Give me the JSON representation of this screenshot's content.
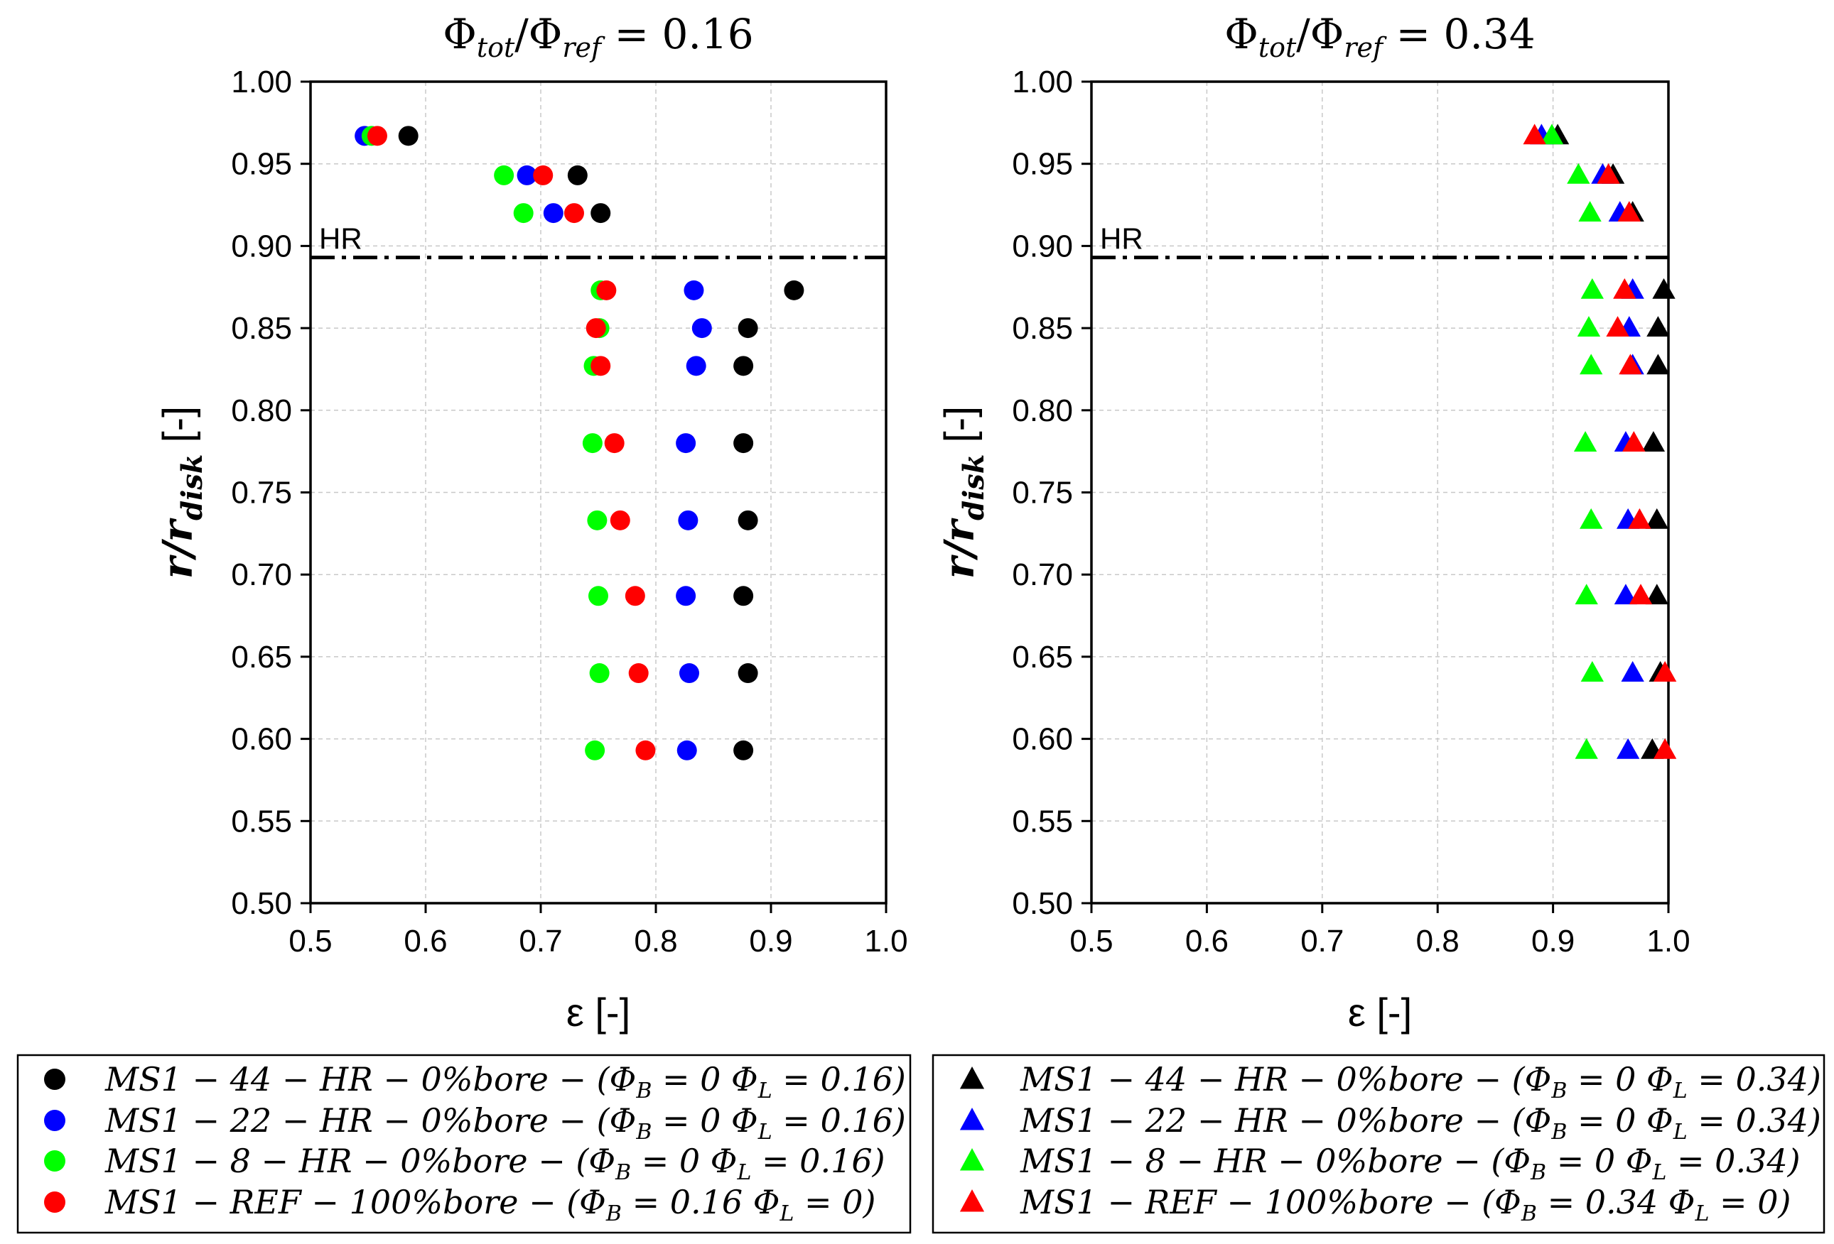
{
  "chart_data": [
    {
      "type": "scatter",
      "marker": "circle",
      "title": "Φtot/Φref = 0.16",
      "title_parts": {
        "phi": "Φ",
        "tot": "tot",
        "slash": "/",
        "ref": "ref",
        "eq": " = 0.16"
      },
      "xlabel": "ε [-]",
      "ylabel": "r/rdisk [-]",
      "ylabel_parts": {
        "r": "r/r",
        "sub": "disk",
        "unit": " [-]"
      },
      "xlim": [
        0.5,
        1.0
      ],
      "ylim": [
        0.5,
        1.0
      ],
      "xticks": [
        "0.5",
        "0.6",
        "0.7",
        "0.8",
        "0.9",
        "1.0"
      ],
      "yticks": [
        "0.50",
        "0.55",
        "0.60",
        "0.65",
        "0.70",
        "0.75",
        "0.80",
        "0.85",
        "0.90",
        "0.95",
        "1.00"
      ],
      "grid": true,
      "hr_line": {
        "label": "HR",
        "y": 0.893
      },
      "series": [
        {
          "name": "MS1 − 44 − HR − 0%bore − (ΦB = 0 ΦL = 0.16)",
          "color": "#000000",
          "points": [
            [
              0.585,
              0.967
            ],
            [
              0.732,
              0.943
            ],
            [
              0.752,
              0.92
            ],
            [
              0.92,
              0.873
            ],
            [
              0.88,
              0.85
            ],
            [
              0.876,
              0.827
            ],
            [
              0.876,
              0.78
            ],
            [
              0.88,
              0.733
            ],
            [
              0.876,
              0.687
            ],
            [
              0.88,
              0.64
            ],
            [
              0.876,
              0.593
            ]
          ]
        },
        {
          "name": "MS1 − 22 − HR − 0%bore − (ΦB = 0 ΦL = 0.16)",
          "color": "#0000ff",
          "points": [
            [
              0.547,
              0.967
            ],
            [
              0.688,
              0.943
            ],
            [
              0.711,
              0.92
            ],
            [
              0.833,
              0.873
            ],
            [
              0.84,
              0.85
            ],
            [
              0.835,
              0.827
            ],
            [
              0.826,
              0.78
            ],
            [
              0.828,
              0.733
            ],
            [
              0.826,
              0.687
            ],
            [
              0.829,
              0.64
            ],
            [
              0.827,
              0.593
            ]
          ]
        },
        {
          "name": "MS1 − 8 − HR − 0%bore − (ΦB = 0 ΦL = 0.16)",
          "color": "#00ff00",
          "points": [
            [
              0.553,
              0.967
            ],
            [
              0.668,
              0.943
            ],
            [
              0.685,
              0.92
            ],
            [
              0.752,
              0.873
            ],
            [
              0.751,
              0.85
            ],
            [
              0.746,
              0.827
            ],
            [
              0.745,
              0.78
            ],
            [
              0.749,
              0.733
            ],
            [
              0.75,
              0.687
            ],
            [
              0.751,
              0.64
            ],
            [
              0.747,
              0.593
            ]
          ]
        },
        {
          "name": "MS1 − REF − 100%bore − (ΦB = 0.16 ΦL = 0)",
          "color": "#ff0000",
          "points": [
            [
              0.558,
              0.967
            ],
            [
              0.702,
              0.943
            ],
            [
              0.729,
              0.92
            ],
            [
              0.757,
              0.873
            ],
            [
              0.748,
              0.85
            ],
            [
              0.752,
              0.827
            ],
            [
              0.764,
              0.78
            ],
            [
              0.769,
              0.733
            ],
            [
              0.782,
              0.687
            ],
            [
              0.785,
              0.64
            ],
            [
              0.791,
              0.593
            ]
          ]
        }
      ],
      "legend": {
        "placement": "bottom-left",
        "entries": [
          {
            "a": "MS1 − 44 − HR − 0%bore − (Φ",
            "b": "B",
            "c": " = 0 Φ",
            "d": "L",
            "e": " = 0.16)"
          },
          {
            "a": "MS1 − 22 − HR − 0%bore − (Φ",
            "b": "B",
            "c": " = 0 Φ",
            "d": "L",
            "e": " = 0.16)"
          },
          {
            "a": "MS1 − 8 − HR − 0%bore − (Φ",
            "b": "B",
            "c": " = 0 Φ",
            "d": "L",
            "e": " = 0.16)"
          },
          {
            "a": "MS1 − REF − 100%bore − (Φ",
            "b": "B",
            "c": " = 0.16 Φ",
            "d": "L",
            "e": " = 0)"
          }
        ]
      }
    },
    {
      "type": "scatter",
      "marker": "triangle",
      "title": "Φtot/Φref = 0.34",
      "title_parts": {
        "phi": "Φ",
        "tot": "tot",
        "slash": "/",
        "ref": "ref",
        "eq": " = 0.34"
      },
      "xlabel": "ε [-]",
      "ylabel": "r/rdisk [-]",
      "ylabel_parts": {
        "r": "r/r",
        "sub": "disk",
        "unit": " [-]"
      },
      "xlim": [
        0.5,
        1.0
      ],
      "ylim": [
        0.5,
        1.0
      ],
      "xticks": [
        "0.5",
        "0.6",
        "0.7",
        "0.8",
        "0.9",
        "1.0"
      ],
      "yticks": [
        "0.50",
        "0.55",
        "0.60",
        "0.65",
        "0.70",
        "0.75",
        "0.80",
        "0.85",
        "0.90",
        "0.95",
        "1.00"
      ],
      "grid": true,
      "hr_line": {
        "label": "HR",
        "y": 0.893
      },
      "series": [
        {
          "name": "MS1 − 44 − HR − 0%bore − (ΦB = 0 ΦL = 0.34)",
          "color": "#000000",
          "points": [
            [
              0.904,
              0.967
            ],
            [
              0.952,
              0.943
            ],
            [
              0.969,
              0.92
            ],
            [
              0.996,
              0.873
            ],
            [
              0.991,
              0.85
            ],
            [
              0.991,
              0.827
            ],
            [
              0.987,
              0.78
            ],
            [
              0.99,
              0.733
            ],
            [
              0.99,
              0.687
            ],
            [
              0.993,
              0.64
            ],
            [
              0.986,
              0.593
            ]
          ]
        },
        {
          "name": "MS1 − 22 − HR − 0%bore − (ΦB = 0 ΦL = 0.34)",
          "color": "#0000ff",
          "points": [
            [
              0.89,
              0.967
            ],
            [
              0.943,
              0.943
            ],
            [
              0.958,
              0.92
            ],
            [
              0.969,
              0.873
            ],
            [
              0.966,
              0.85
            ],
            [
              0.969,
              0.827
            ],
            [
              0.963,
              0.78
            ],
            [
              0.965,
              0.733
            ],
            [
              0.963,
              0.687
            ],
            [
              0.969,
              0.64
            ],
            [
              0.965,
              0.593
            ]
          ]
        },
        {
          "name": "MS1 − 8 − HR − 0%bore − (ΦB = 0 ΦL = 0.34)",
          "color": "#00ff00",
          "points": [
            [
              0.899,
              0.967
            ],
            [
              0.922,
              0.943
            ],
            [
              0.932,
              0.92
            ],
            [
              0.934,
              0.873
            ],
            [
              0.931,
              0.85
            ],
            [
              0.933,
              0.827
            ],
            [
              0.928,
              0.78
            ],
            [
              0.933,
              0.733
            ],
            [
              0.929,
              0.687
            ],
            [
              0.934,
              0.64
            ],
            [
              0.929,
              0.593
            ]
          ]
        },
        {
          "name": "MS1 − REF − 100%bore − (ΦB = 0.34 ΦL = 0)",
          "color": "#ff0000",
          "points": [
            [
              0.884,
              0.967
            ],
            [
              0.948,
              0.943
            ],
            [
              0.966,
              0.92
            ],
            [
              0.962,
              0.873
            ],
            [
              0.956,
              0.85
            ],
            [
              0.967,
              0.827
            ],
            [
              0.97,
              0.78
            ],
            [
              0.975,
              0.733
            ],
            [
              0.976,
              0.687
            ],
            [
              0.997,
              0.64
            ],
            [
              0.997,
              0.593
            ]
          ]
        }
      ],
      "legend": {
        "placement": "bottom-right",
        "entries": [
          {
            "a": "MS1 − 44 − HR − 0%bore − (Φ",
            "b": "B",
            "c": " = 0 Φ",
            "d": "L",
            "e": " = 0.34)"
          },
          {
            "a": "MS1 − 22 − HR − 0%bore − (Φ",
            "b": "B",
            "c": " = 0 Φ",
            "d": "L",
            "e": " = 0.34)"
          },
          {
            "a": "MS1 − 8 − HR − 0%bore − (Φ",
            "b": "B",
            "c": " = 0 Φ",
            "d": "L",
            "e": " = 0.34)"
          },
          {
            "a": "MS1 − REF − 100%bore − (Φ",
            "b": "B",
            "c": " = 0.34 Φ",
            "d": "L",
            "e": " = 0)"
          }
        ]
      }
    }
  ]
}
